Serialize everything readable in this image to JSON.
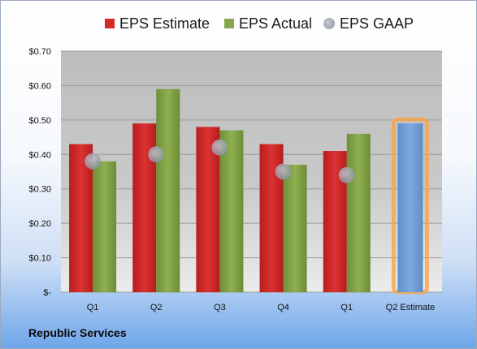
{
  "company": "Republic Services",
  "colors": {
    "estimate": "#d42a2a",
    "actual": "#86a84a",
    "gaap": "#a6adba",
    "q2_estimate": "#6f9fd8",
    "q2_estimate_glow": "#f5a64a"
  },
  "chart_data": {
    "type": "bar",
    "categories": [
      "Q1",
      "Q2",
      "Q3",
      "Q4",
      "Q1",
      "Q2 Estimate"
    ],
    "series": [
      {
        "name": "EPS Estimate",
        "values": [
          0.43,
          0.49,
          0.48,
          0.43,
          0.41,
          null
        ]
      },
      {
        "name": "EPS Actual",
        "values": [
          0.38,
          0.59,
          0.47,
          0.37,
          0.46,
          0.49
        ]
      },
      {
        "name": "EPS GAAP",
        "values": [
          0.38,
          0.4,
          0.42,
          0.35,
          0.34,
          null
        ]
      }
    ],
    "y_ticks": [
      "$-",
      "$0.10",
      "$0.20",
      "$0.30",
      "$0.40",
      "$0.50",
      "$0.60",
      "$0.70"
    ],
    "ylim": [
      0,
      0.7
    ],
    "grid": true,
    "legend_position": "top"
  }
}
